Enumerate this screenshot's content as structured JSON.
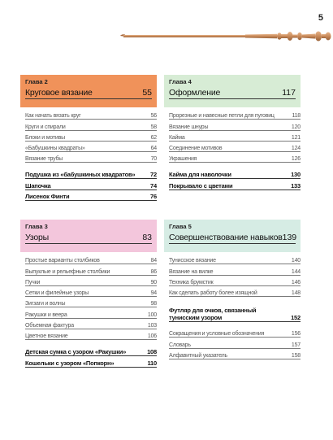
{
  "page_number": "5",
  "colors": {
    "orange": "#f0925a",
    "green": "#d7ecd5",
    "pink": "#f3c6dc",
    "mint": "#d6ece4"
  },
  "sections": {
    "ch2": {
      "chapter": "Глава 2",
      "title": "Круговое вязание",
      "page": "55",
      "items": [
        {
          "t": "Как начать вязать круг",
          "p": "56"
        },
        {
          "t": "Круги и спирали",
          "p": "58"
        },
        {
          "t": "Блоки и мотивы",
          "p": "62"
        },
        {
          "t": "«Бабушкины квадраты»",
          "p": "64"
        },
        {
          "t": "Вязание трубы",
          "p": "70"
        }
      ],
      "projects": [
        {
          "t": "Подушка из «бабушкиных квадратов»",
          "p": "72"
        },
        {
          "t": "Шапочка",
          "p": "74"
        },
        {
          "t": "Лисенок Финти",
          "p": "76"
        }
      ]
    },
    "ch4": {
      "chapter": "Глава 4",
      "title": "Оформление",
      "page": "117",
      "items": [
        {
          "t": "Прорезные и навесные петли для пуговиц",
          "p": "118"
        },
        {
          "t": "Вязание шнуры",
          "p": "120"
        },
        {
          "t": "Кайма",
          "p": "121"
        },
        {
          "t": "Соединение мотивов",
          "p": "124"
        },
        {
          "t": "Украшения",
          "p": "126"
        }
      ],
      "projects": [
        {
          "t": "Кайма для наволочки",
          "p": "130"
        },
        {
          "t": "Покрывало с цветами",
          "p": "133"
        }
      ]
    },
    "ch3": {
      "chapter": "Глава 3",
      "title": "Узоры",
      "page": "83",
      "items": [
        {
          "t": "Простые варианты столбиков",
          "p": "84"
        },
        {
          "t": "Выпуклые и рельефные столбики",
          "p": "86"
        },
        {
          "t": "Пучки",
          "p": "90"
        },
        {
          "t": "Сетки и филейные узоры",
          "p": "94"
        },
        {
          "t": "Зигзаги и волны",
          "p": "98"
        },
        {
          "t": "Ракушки и веера",
          "p": "100"
        },
        {
          "t": "Объемная фактура",
          "p": "103"
        },
        {
          "t": "Цветное вязание",
          "p": "106"
        }
      ],
      "projects": [
        {
          "t": "Детская сумка с узором «Ракушки»",
          "p": "108"
        },
        {
          "t": "Кошельки с узором «Попкорн»",
          "p": "110"
        }
      ]
    },
    "ch5": {
      "chapter": "Глава 5",
      "title": "Совершенствование навыков",
      "page": "139",
      "items": [
        {
          "t": "Тунисское вязание",
          "p": "140"
        },
        {
          "t": "Вязание на вилке",
          "p": "144"
        },
        {
          "t": "Техника брумстик",
          "p": "146"
        },
        {
          "t": "Как сделать работу более изящной",
          "p": "148"
        }
      ],
      "project_tall": {
        "t": "Футляр для очков, связанный тунисским узором",
        "p": "152"
      },
      "extras": [
        {
          "t": "Сокращения и условные обозначения",
          "p": "156"
        },
        {
          "t": "Словарь",
          "p": "157"
        },
        {
          "t": "Алфавитный указатель",
          "p": "158"
        }
      ]
    }
  }
}
